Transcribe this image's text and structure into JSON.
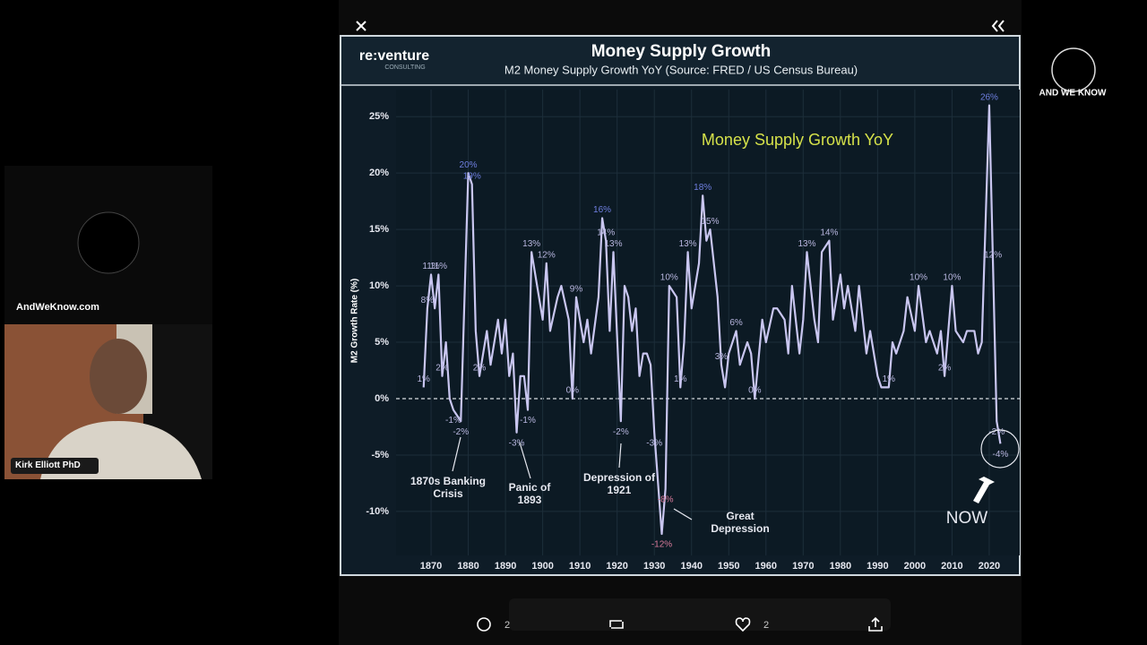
{
  "chart_data": {
    "type": "line",
    "title": "Money Supply Growth",
    "subtitle": "M2 Money Supply Growth YoY  (Source: FRED / US Census Bureau)",
    "y_label": "M2 Growth Rate (%)",
    "color": "#c9c6f0",
    "grid": true,
    "x": [
      1868,
      1869,
      1870,
      1871,
      1872,
      1873,
      1874,
      1875,
      1876,
      1878,
      1880,
      1881,
      1882,
      1883,
      1885,
      1886,
      1888,
      1889,
      1890,
      1891,
      1892,
      1893,
      1894,
      1895,
      1896,
      1897,
      1898,
      1900,
      1901,
      1902,
      1904,
      1905,
      1907,
      1908,
      1909,
      1911,
      1912,
      1913,
      1915,
      1916,
      1917,
      1918,
      1919,
      1921,
      1922,
      1923,
      1924,
      1925,
      1926,
      1927,
      1928,
      1929,
      1930,
      1932,
      1933,
      1934,
      1936,
      1937,
      1938,
      1939,
      1940,
      1942,
      1943,
      1944,
      1945,
      1947,
      1948,
      1949,
      1950,
      1952,
      1953,
      1955,
      1956,
      1957,
      1959,
      1960,
      1962,
      1963,
      1965,
      1966,
      1967,
      1969,
      1970,
      1971,
      1973,
      1974,
      1975,
      1977,
      1978,
      1980,
      1981,
      1982,
      1984,
      1985,
      1987,
      1988,
      1990,
      1991,
      1993,
      1994,
      1995,
      1997,
      1998,
      2000,
      2001,
      2003,
      2004,
      2006,
      2007,
      2008,
      2010,
      2011,
      2013,
      2014,
      2016,
      2017,
      2018,
      2020,
      2021,
      2022,
      2023
    ],
    "values": [
      1,
      8,
      11,
      8,
      11,
      2,
      5,
      0,
      -1,
      -2,
      20,
      19,
      6,
      2,
      6,
      3,
      7,
      4,
      7,
      2,
      4,
      -3,
      2,
      2,
      -1,
      13,
      11,
      7,
      12,
      6,
      9,
      10,
      7,
      0,
      9,
      5,
      7,
      4,
      9,
      16,
      14,
      6,
      13,
      -2,
      10,
      9,
      6,
      8,
      2,
      4,
      4,
      3,
      -3,
      -12,
      -8,
      10,
      9,
      1,
      5,
      13,
      8,
      12,
      18,
      14,
      15,
      9,
      3,
      1,
      4,
      6,
      3,
      5,
      4,
      0,
      7,
      5,
      8,
      8,
      7,
      4,
      10,
      4,
      7,
      13,
      7,
      5,
      13,
      14,
      7,
      11,
      8,
      10,
      6,
      10,
      4,
      6,
      2,
      1,
      1,
      5,
      4,
      6,
      9,
      6,
      10,
      5,
      6,
      4,
      6,
      2,
      10,
      6,
      5,
      6,
      6,
      4,
      5,
      26,
      12,
      -2,
      -4
    ],
    "value_labels": [
      "1%",
      "8%",
      "11%",
      null,
      "11%",
      "2%",
      null,
      null,
      "-1%",
      "-2%",
      "20%",
      "19%",
      null,
      "2%",
      null,
      null,
      null,
      null,
      null,
      null,
      null,
      "-3%",
      null,
      null,
      "-1%",
      "13%",
      null,
      null,
      "12%",
      null,
      null,
      null,
      null,
      "0%",
      "9%",
      null,
      null,
      null,
      null,
      "16%",
      "14%",
      null,
      "13%",
      "-2%",
      null,
      null,
      null,
      null,
      null,
      null,
      null,
      null,
      "-3%",
      "-12%",
      "-8%",
      "10%",
      null,
      "1%",
      null,
      "13%",
      null,
      null,
      "18%",
      null,
      "15%",
      null,
      "3%",
      null,
      null,
      "6%",
      null,
      null,
      null,
      "0%",
      null,
      null,
      null,
      null,
      null,
      null,
      null,
      null,
      null,
      "13%",
      null,
      null,
      null,
      "14%",
      null,
      null,
      null,
      null,
      null,
      null,
      null,
      null,
      null,
      null,
      "1%",
      null,
      null,
      null,
      null,
      null,
      "10%",
      null,
      null,
      null,
      null,
      "2%",
      "10%",
      null,
      null,
      null,
      null,
      null,
      null,
      "26%",
      "12%",
      "-2%",
      "-4%"
    ],
    "xlim": [
      1860.6,
      2028.2
    ],
    "xticks": [
      1870,
      1880,
      1890,
      1900,
      1910,
      1920,
      1930,
      1940,
      1950,
      1960,
      1970,
      1980,
      1990,
      2000,
      2010,
      2020
    ],
    "ylim": [
      -13.9,
      27.4
    ],
    "yticks": [
      {
        "value": -10,
        "label": "-10%"
      },
      {
        "value": -5,
        "label": "-5%"
      },
      {
        "value": 0,
        "label": "0%"
      },
      {
        "value": 5,
        "label": "5%"
      },
      {
        "value": 10,
        "label": "10%"
      },
      {
        "value": 15,
        "label": "15%"
      },
      {
        "value": 20,
        "label": "20%"
      },
      {
        "value": 25,
        "label": "25%"
      }
    ],
    "annotations": [
      "Money Supply Growth YoY",
      "1870s Banking Crisis",
      "Panic of 1893",
      "Depression of 1921",
      "Great Depression",
      "NOW"
    ]
  },
  "overlay": {
    "brand": "re:venture",
    "brand_sub": "CONSULTING",
    "channel": "AND WE KNOW",
    "website": "AndWeKnow.com",
    "speaker": "Kirk Elliott PhD",
    "replies": "2",
    "likes": "2"
  }
}
